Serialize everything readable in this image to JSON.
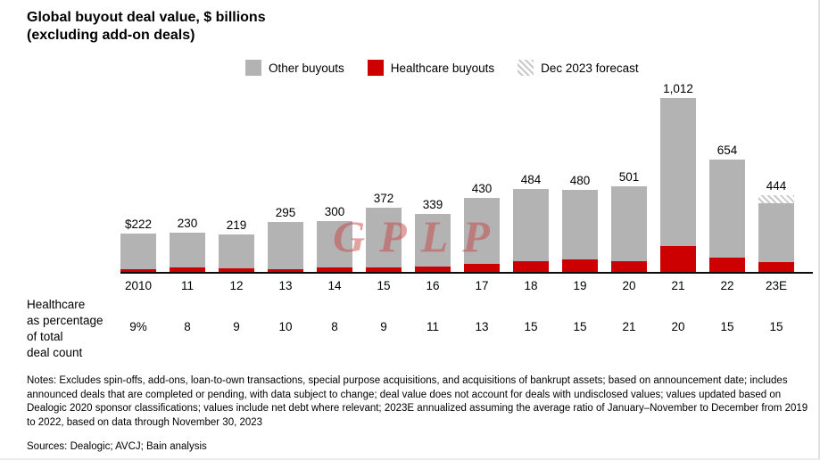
{
  "title": {
    "line1": "Global buyout deal value, $ billions",
    "line2": "(excluding add-on deals)"
  },
  "legend": {
    "items": [
      {
        "label": "Other buyouts",
        "key": "other",
        "color": "#b3b3b3",
        "swatch": "solid"
      },
      {
        "label": "Healthcare buyouts",
        "key": "healthcare",
        "color": "#cc0000",
        "swatch": "solid"
      },
      {
        "label": "Dec 2023 forecast",
        "key": "forecast",
        "color": "#c9c9c9",
        "swatch": "diagonal-hatch"
      }
    ]
  },
  "row_label": {
    "lines": [
      "Healthcare",
      "as percentage",
      "of total",
      "deal count"
    ]
  },
  "watermark": {
    "text": "GPLP"
  },
  "chart_data": {
    "type": "bar",
    "subtype": "stacked",
    "title": "Global buyout deal value, $ billions (excluding add-on deals)",
    "categories": [
      "2010",
      "11",
      "12",
      "13",
      "14",
      "15",
      "16",
      "17",
      "18",
      "19",
      "20",
      "21",
      "22",
      "23E"
    ],
    "totals": [
      222,
      230,
      219,
      295,
      300,
      372,
      339,
      430,
      484,
      480,
      501,
      1012,
      654,
      444
    ],
    "total_labels": [
      "$222",
      "230",
      "219",
      "295",
      "300",
      "372",
      "339",
      "430",
      "484",
      "480",
      "501",
      "1,012",
      "654",
      "444"
    ],
    "series": [
      {
        "name": "Healthcare buyouts",
        "key": "healthcare",
        "color": "#cc0000",
        "estimated": true,
        "values": [
          15,
          28,
          20,
          18,
          28,
          26,
          33,
          48,
          64,
          75,
          63,
          151,
          85,
          55
        ]
      },
      {
        "name": "Other buyouts",
        "key": "other",
        "color": "#b3b3b3",
        "estimated": true,
        "values": [
          207,
          202,
          199,
          277,
          272,
          346,
          306,
          382,
          420,
          405,
          438,
          861,
          569,
          343
        ]
      },
      {
        "name": "Dec 2023 forecast",
        "key": "forecast",
        "pattern": "diagonal-hatch",
        "estimated": true,
        "values": [
          0,
          0,
          0,
          0,
          0,
          0,
          0,
          0,
          0,
          0,
          0,
          0,
          0,
          46
        ]
      }
    ],
    "healthcare_pct_of_deal_count": [
      "9%",
      "8",
      "9",
      "10",
      "8",
      "9",
      "11",
      "13",
      "15",
      "15",
      "21",
      "20",
      "15",
      "15"
    ],
    "ylim": [
      0,
      1012
    ],
    "grid": false,
    "legend_position": "top",
    "xlabel": "",
    "ylabel": ""
  },
  "notes": {
    "notes_text": "Notes: Excludes spin-offs, add-ons, loan-to-own transactions, special purpose acquisitions, and acquisitions of bankrupt assets; based on announcement date; includes announced deals that are completed or pending, with data subject to change; deal value does not account for deals with undisclosed values; values updated based on Dealogic 2020 sponsor classifications; values include net debt where relevant; 2023E annualized assuming the average ratio of January–November to December from 2019 to 2022, based on data through November 30, 2023",
    "sources_text": "Sources: Dealogic; AVCJ; Bain analysis"
  }
}
